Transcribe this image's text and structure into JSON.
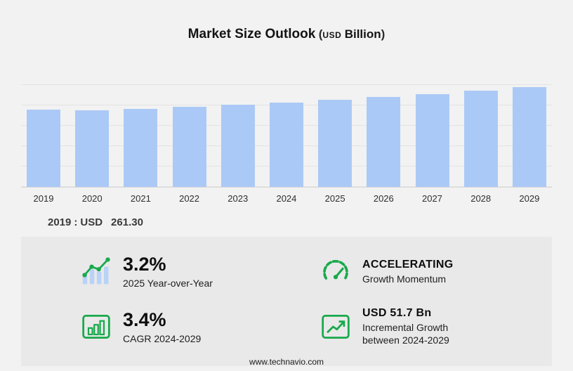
{
  "title": {
    "main": "Market Size Outlook",
    "paren_open": "(",
    "currency": "USD",
    "unit": "Billion",
    "paren_close": ")"
  },
  "chart_data": {
    "type": "bar",
    "title": "Market Size Outlook (USD Billion)",
    "categories": [
      "2019",
      "2020",
      "2021",
      "2022",
      "2023",
      "2024",
      "2025",
      "2026",
      "2027",
      "2028",
      "2029"
    ],
    "values": [
      261.3,
      256.9,
      261.9,
      269.3,
      276.5,
      284.4,
      293.5,
      302.5,
      312.2,
      323.4,
      336.1
    ],
    "xlabel": "",
    "ylabel": "",
    "ylim": [
      0,
      350
    ],
    "grid": true,
    "legend": "none",
    "bar_color": "#abc9f6"
  },
  "annotation": {
    "year": "2019",
    "separator": ":",
    "currency": "USD",
    "value": "261.30"
  },
  "stats": [
    {
      "icon": "bar-chart-trend-icon",
      "value": "3.2%",
      "label": "2025 Year-over-Year"
    },
    {
      "icon": "speedometer-icon",
      "value": "ACCELERATING",
      "label": "Growth Momentum"
    },
    {
      "icon": "chart-growth-icon",
      "value": "3.4%",
      "label": "CAGR 2024-2029"
    },
    {
      "icon": "trend-up-icon",
      "value": "USD 51.7 Bn",
      "label": "Incremental Growth between 2024-2029"
    }
  ],
  "footer": {
    "url": "www.technavio.com"
  },
  "colors": {
    "accent_green": "#18a94b",
    "bar_blue": "#abc9f6",
    "icon_bar_blue": "#b9d2f8",
    "panel_bg": "#e9e9e9",
    "page_bg": "#f2f2f2"
  }
}
